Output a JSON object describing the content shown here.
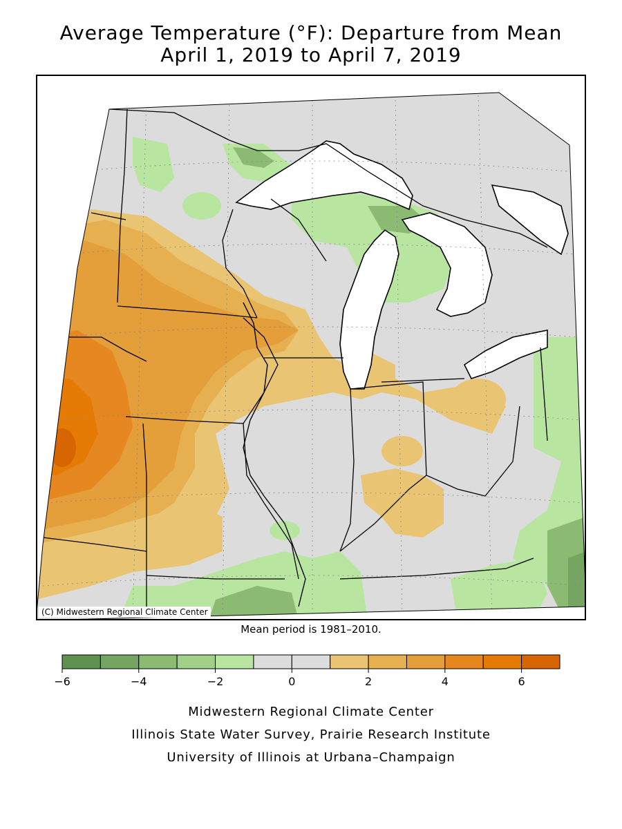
{
  "title": {
    "line1": "Average Temperature (°F): Departure from Mean",
    "line2": "April 1, 2019 to April 7, 2019"
  },
  "copyright": "(C) Midwestern Regional Climate Center",
  "mean_period": "Mean period is 1981–2010.",
  "legend": {
    "colors": [
      "#5f9150",
      "#74a562",
      "#8bbb73",
      "#a1d089",
      "#b8e6a0",
      "#dcdcdc",
      "#dcdcdc",
      "#e8c473",
      "#e6b050",
      "#e49e3a",
      "#e6881f",
      "#e57a05",
      "#d76602"
    ],
    "tick_labels": [
      "−6",
      "−4",
      "−2",
      "0",
      "2",
      "4",
      "6"
    ]
  },
  "credits": [
    "Midwestern Regional Climate Center",
    "Illinois State Water Survey, Prairie Research Institute",
    "University of Illinois at Urbana–Champaign"
  ]
}
